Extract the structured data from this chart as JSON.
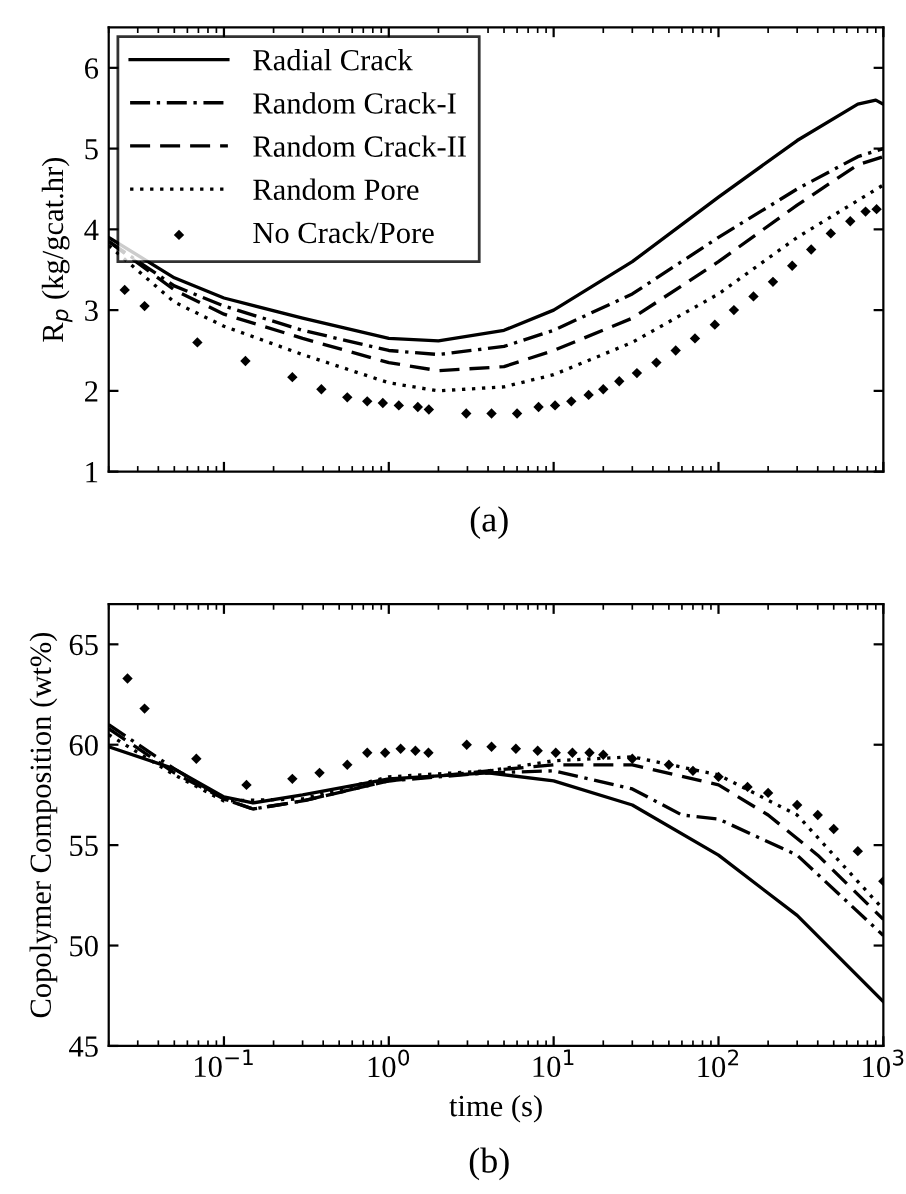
{
  "chart_data": [
    {
      "type": "line",
      "ylabel": "R$_{p}$ (kg/gcat.hr)",
      "xlim": [
        0.02,
        1000
      ],
      "ylim": [
        1,
        6.5
      ],
      "yticks": [
        1,
        2,
        3,
        4,
        5,
        6
      ],
      "xticks": [
        {
          "value": 0.1,
          "label": null
        },
        {
          "value": 1,
          "label": null
        },
        {
          "value": 10,
          "label": null
        },
        {
          "value": 100,
          "label": null
        },
        {
          "value": 1000,
          "label": null
        }
      ],
      "log": "x",
      "tick_labels": "y",
      "legend": "top left",
      "grid": false,
      "annotations": [
        "(a)"
      ],
      "series": [
        {
          "name": "Radial Crack",
          "color": "#000000",
          "line_style": "solid",
          "marker": "none",
          "x": [
            0.02,
            0.05,
            0.1,
            0.3,
            1,
            2,
            5,
            10,
            30,
            100,
            300,
            700,
            900,
            1000
          ],
          "values": [
            3.9,
            3.4,
            3.15,
            2.9,
            2.65,
            2.62,
            2.75,
            3.0,
            3.6,
            4.4,
            5.1,
            5.55,
            5.6,
            5.55
          ]
        },
        {
          "name": "Random Crack-I",
          "color": "#000000",
          "line_style": "dashdot",
          "marker": "none",
          "x": [
            0.02,
            0.05,
            0.1,
            0.3,
            1,
            2,
            5,
            10,
            30,
            100,
            300,
            700,
            1000
          ],
          "values": [
            3.85,
            3.3,
            3.05,
            2.75,
            2.5,
            2.45,
            2.55,
            2.75,
            3.2,
            3.9,
            4.5,
            4.9,
            5.0
          ]
        },
        {
          "name": "Random Crack-II",
          "color": "#000000",
          "line_style": "dashed",
          "marker": "none",
          "x": [
            0.02,
            0.05,
            0.1,
            0.3,
            1,
            2,
            5,
            10,
            30,
            100,
            300,
            700,
            1000
          ],
          "values": [
            3.85,
            3.25,
            2.95,
            2.65,
            2.35,
            2.25,
            2.3,
            2.5,
            2.9,
            3.6,
            4.3,
            4.8,
            4.9
          ]
        },
        {
          "name": "Random Pore",
          "color": "#000000",
          "line_style": "dotted",
          "marker": "none",
          "x": [
            0.02,
            0.05,
            0.1,
            0.3,
            1,
            2,
            5,
            10,
            30,
            100,
            300,
            1000
          ],
          "values": [
            3.8,
            3.1,
            2.8,
            2.45,
            2.1,
            2.0,
            2.05,
            2.2,
            2.6,
            3.2,
            3.9,
            4.55
          ]
        },
        {
          "name": "No Crack/Pore",
          "type": "scatter",
          "color": "#000000",
          "marker": "diamond",
          "x": [
            0.025,
            0.033,
            0.069,
            0.135,
            0.26,
            0.39,
            0.56,
            0.74,
            0.92,
            1.15,
            1.5,
            1.75,
            2.95,
            4.2,
            6,
            8.1,
            10.2,
            12.8,
            16.3,
            20,
            25,
            32,
            42,
            55,
            72,
            95,
            124,
            163,
            214,
            280,
            365,
            480,
            630,
            780,
            910
          ],
          "values": [
            3.25,
            3.05,
            2.6,
            2.37,
            2.17,
            2.02,
            1.92,
            1.87,
            1.85,
            1.82,
            1.8,
            1.77,
            1.72,
            1.72,
            1.72,
            1.8,
            1.82,
            1.87,
            1.95,
            2.02,
            2.12,
            2.22,
            2.35,
            2.5,
            2.65,
            2.82,
            3.0,
            3.17,
            3.35,
            3.55,
            3.75,
            3.95,
            4.1,
            4.22,
            4.25
          ]
        }
      ]
    },
    {
      "type": "line",
      "ylabel": "Copolymer Composition (wt%)",
      "xlabel": "time (s)",
      "xlim": [
        0.02,
        1000
      ],
      "ylim": [
        45,
        67
      ],
      "yticks": [
        45,
        50,
        55,
        60,
        65
      ],
      "xticks": [
        {
          "value": 0.1,
          "label": "10$^{−1}$"
        },
        {
          "value": 1,
          "label": "10$^{0}$"
        },
        {
          "value": 10,
          "label": "10$^{1}$"
        },
        {
          "value": 100,
          "label": "10$^{2}$"
        },
        {
          "value": 1000,
          "label": "10$^{3}$"
        }
      ],
      "log": "x",
      "legend": false,
      "grid": false,
      "annotations": [
        "(b)"
      ],
      "series": [
        {
          "color": "#000000",
          "line_style": "solid",
          "marker": "none",
          "x": [
            0.02,
            0.05,
            0.1,
            0.15,
            0.3,
            1,
            4,
            10,
            30,
            100,
            300,
            1000
          ],
          "values": [
            59.9,
            58.8,
            57.4,
            57.1,
            57.5,
            58.3,
            58.6,
            58.2,
            57.0,
            54.5,
            51.5,
            47.2
          ]
        },
        {
          "color": "#000000",
          "line_style": "dashdot",
          "marker": "none",
          "x": [
            0.02,
            0.05,
            0.1,
            0.15,
            0.3,
            1,
            4,
            10,
            30,
            60,
            100,
            300,
            1000
          ],
          "values": [
            61,
            58.8,
            57.3,
            56.8,
            57.2,
            58.2,
            58.6,
            58.7,
            57.8,
            56.5,
            56.3,
            54.5,
            50.5
          ]
        },
        {
          "color": "#000000",
          "line_style": "dashed",
          "marker": "none",
          "x": [
            0.02,
            0.05,
            0.1,
            0.15,
            0.3,
            1,
            4,
            10,
            30,
            100,
            200,
            400,
            1000
          ],
          "values": [
            60.8,
            58.6,
            57.3,
            56.8,
            57.2,
            58.2,
            58.7,
            59.0,
            59.0,
            58.0,
            56.5,
            54.5,
            51.3
          ]
        },
        {
          "color": "#000000",
          "line_style": "dotted",
          "marker": "none",
          "x": [
            0.02,
            0.05,
            0.1,
            0.3,
            1,
            4,
            10,
            30,
            100,
            300,
            1000
          ],
          "values": [
            60.5,
            58.5,
            57.2,
            57.3,
            58.4,
            58.7,
            59.2,
            59.4,
            58.5,
            56.5,
            51.8
          ]
        },
        {
          "type": "scatter",
          "color": "#000000",
          "marker": "diamond",
          "x": [
            0.026,
            0.033,
            0.068,
            0.137,
            0.26,
            0.38,
            0.56,
            0.74,
            0.95,
            1.18,
            1.45,
            1.74,
            2.97,
            4.2,
            5.9,
            8.0,
            10.3,
            13,
            16.5,
            20,
            30,
            50,
            70,
            100,
            150,
            200,
            300,
            400,
            500,
            700,
            1000
          ],
          "values": [
            63.3,
            61.8,
            59.3,
            58.0,
            58.3,
            58.6,
            59.0,
            59.6,
            59.6,
            59.8,
            59.7,
            59.6,
            60.0,
            59.9,
            59.8,
            59.7,
            59.6,
            59.6,
            59.6,
            59.5,
            59.3,
            59.0,
            58.7,
            58.4,
            57.9,
            57.6,
            57.0,
            56.5,
            55.8,
            54.7,
            53.2
          ]
        }
      ]
    }
  ]
}
